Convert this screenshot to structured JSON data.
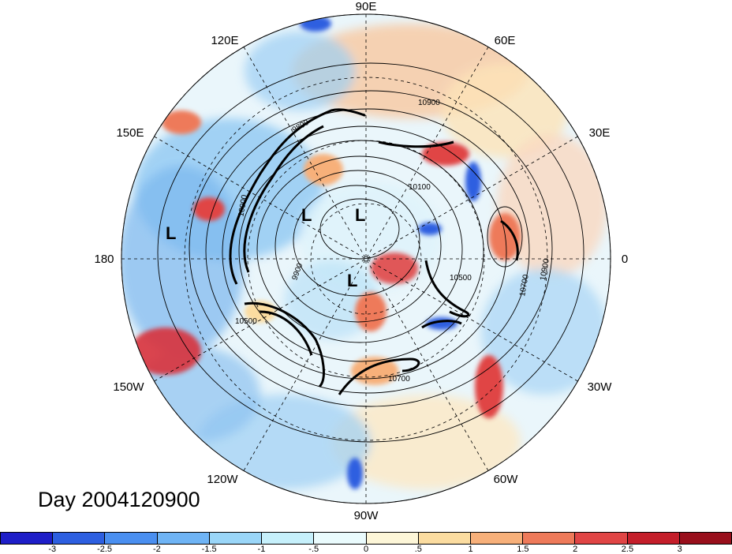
{
  "title": "Day 2004120900",
  "longitude_labels": {
    "top": "90E",
    "upper_left": "120E",
    "upper_right": "60E",
    "left_upper": "150E",
    "right_upper": "30E",
    "left": "180",
    "right": "0",
    "left_lower": "150W",
    "right_lower": "30W",
    "lower_left": "120W",
    "lower_right": "60W",
    "bottom": "90W"
  },
  "low_markers": [
    "L",
    "L",
    "L",
    "L"
  ],
  "contour_labels": [
    "10900",
    "10900",
    "10100",
    "9900",
    "9800",
    "10500",
    "10500",
    "10700",
    "10700",
    "10900",
    "10700"
  ],
  "colorbar": {
    "ticks": [
      "-3",
      "-2.5",
      "-2",
      "-1.5",
      "-1",
      "-.5",
      "0",
      ".5",
      "1",
      "1.5",
      "2",
      "2.5",
      "3"
    ],
    "colors": [
      "#1e1ec8",
      "#2d5fe0",
      "#4a8ff0",
      "#6fb4f5",
      "#9ad6f8",
      "#c6f0fb",
      "#eafbfd",
      "#fdf6d8",
      "#fbdca0",
      "#f7b07a",
      "#ee7a5a",
      "#e04545",
      "#c41e2a",
      "#990f1c"
    ]
  }
}
